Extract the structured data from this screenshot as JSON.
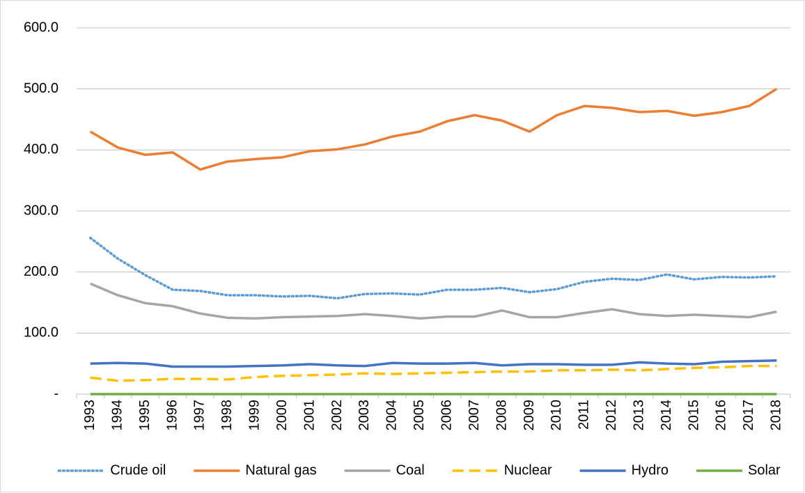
{
  "chart_data": {
    "type": "line",
    "categories": [
      "1993",
      "1994",
      "1995",
      "1996",
      "1997",
      "1998",
      "1999",
      "2000",
      "2001",
      "2002",
      "2003",
      "2004",
      "2005",
      "2006",
      "2007",
      "2008",
      "2009",
      "2010",
      "2011",
      "2012",
      "2013",
      "2014",
      "2015",
      "2016",
      "2017",
      "2018"
    ],
    "series": [
      {
        "name": "Crude oil",
        "color": "#5b9bd5",
        "style": "dotted",
        "values": [
          256,
          222,
          195,
          171,
          169,
          162,
          162,
          160,
          161,
          157,
          164,
          165,
          163,
          171,
          171,
          174,
          167,
          172,
          184,
          189,
          187,
          196,
          188,
          192,
          191,
          193
        ]
      },
      {
        "name": "Natural gas",
        "color": "#ed7d31",
        "style": "solid",
        "values": [
          430,
          404,
          392,
          396,
          368,
          381,
          385,
          388,
          398,
          401,
          409,
          422,
          430,
          447,
          457,
          448,
          430,
          457,
          472,
          469,
          462,
          464,
          456,
          462,
          472,
          500
        ]
      },
      {
        "name": "Coal",
        "color": "#a5a5a5",
        "style": "solid",
        "values": [
          181,
          162,
          149,
          144,
          132,
          125,
          124,
          126,
          127,
          128,
          131,
          128,
          124,
          127,
          127,
          137,
          126,
          126,
          133,
          139,
          131,
          128,
          130,
          128,
          126,
          135
        ]
      },
      {
        "name": "Nuclear",
        "color": "#ffc000",
        "style": "dashed",
        "values": [
          27,
          22,
          23,
          25,
          25,
          24,
          28,
          30,
          31,
          32,
          34,
          33,
          34,
          35,
          36,
          37,
          37,
          39,
          39,
          40,
          39,
          41,
          43,
          44,
          46,
          46
        ]
      },
      {
        "name": "Hydro",
        "color": "#4472c4",
        "style": "solid",
        "values": [
          50,
          51,
          50,
          45,
          45,
          45,
          46,
          47,
          49,
          47,
          46,
          51,
          50,
          50,
          51,
          47,
          49,
          49,
          48,
          48,
          52,
          50,
          49,
          53,
          54,
          55
        ]
      },
      {
        "name": "Solar",
        "color": "#70ad47",
        "style": "solid",
        "values": [
          0,
          0,
          0,
          0,
          0,
          0,
          0,
          0,
          0,
          0,
          0,
          0,
          0,
          0,
          0,
          0,
          0,
          0,
          0,
          0,
          0,
          0,
          0,
          0,
          0,
          0
        ]
      }
    ],
    "ylim": [
      0,
      600
    ],
    "yticks": [
      {
        "value": 0,
        "label": "-"
      },
      {
        "value": 100,
        "label": "100.0"
      },
      {
        "value": 200,
        "label": "200.0"
      },
      {
        "value": 300,
        "label": "300.0"
      },
      {
        "value": 400,
        "label": "400.0"
      },
      {
        "value": 500,
        "label": "500.0"
      },
      {
        "value": 600,
        "label": "600.0"
      }
    ],
    "grid": true,
    "legend": "bottom"
  }
}
